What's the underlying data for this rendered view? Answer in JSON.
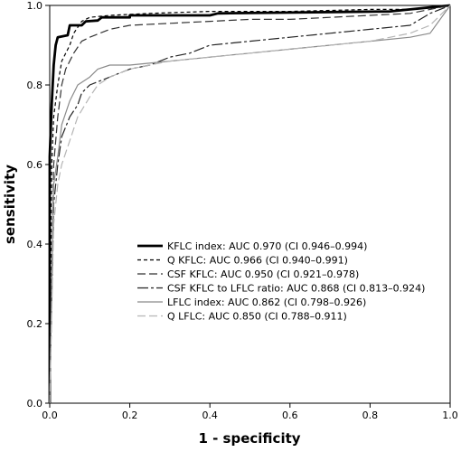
{
  "chart_data": {
    "type": "line",
    "title": "",
    "xlabel": "1 - specificity",
    "ylabel": "sensitivity",
    "xlim": [
      0,
      1
    ],
    "ylim": [
      0,
      1
    ],
    "x_ticks": [
      "0.0",
      "0.2",
      "0.4",
      "0.6",
      "0.8",
      "1.0"
    ],
    "y_ticks": [
      "0.0",
      "0.2",
      "0.4",
      "0.6",
      "0.8",
      "1.0"
    ],
    "grid": false,
    "legend_position": "center-right",
    "series": [
      {
        "name": "KFLC index: AUC 0.970 (CI 0.946–0.994)",
        "color": "#000000",
        "dash": "solid",
        "weight": "thick",
        "points": [
          [
            0,
            0
          ],
          [
            0,
            0.62
          ],
          [
            0.005,
            0.75
          ],
          [
            0.01,
            0.85
          ],
          [
            0.015,
            0.9
          ],
          [
            0.02,
            0.92
          ],
          [
            0.045,
            0.925
          ],
          [
            0.05,
            0.95
          ],
          [
            0.08,
            0.95
          ],
          [
            0.09,
            0.96
          ],
          [
            0.12,
            0.962
          ],
          [
            0.13,
            0.97
          ],
          [
            0.2,
            0.97
          ],
          [
            0.2,
            0.975
          ],
          [
            0.4,
            0.975
          ],
          [
            0.42,
            0.98
          ],
          [
            0.85,
            0.985
          ],
          [
            0.9,
            0.99
          ],
          [
            0.95,
            0.995
          ],
          [
            1,
            1
          ]
        ]
      },
      {
        "name": "Q KFLC: AUC 0.966 (CI 0.940–0.991)",
        "color": "#000000",
        "dash": "short",
        "weight": "normal",
        "points": [
          [
            0,
            0
          ],
          [
            0.005,
            0.6
          ],
          [
            0.01,
            0.72
          ],
          [
            0.02,
            0.8
          ],
          [
            0.03,
            0.86
          ],
          [
            0.05,
            0.9
          ],
          [
            0.06,
            0.93
          ],
          [
            0.08,
            0.96
          ],
          [
            0.1,
            0.97
          ],
          [
            0.15,
            0.975
          ],
          [
            0.25,
            0.98
          ],
          [
            0.4,
            0.985
          ],
          [
            0.6,
            0.985
          ],
          [
            0.8,
            0.99
          ],
          [
            0.9,
            0.99
          ],
          [
            0.95,
            0.995
          ],
          [
            1,
            1
          ]
        ]
      },
      {
        "name": "CSF KFLC: AUC 0.950 (CI 0.921–0.978)",
        "color": "#333333",
        "dash": "long",
        "weight": "normal",
        "points": [
          [
            0,
            0
          ],
          [
            0.01,
            0.6
          ],
          [
            0.02,
            0.72
          ],
          [
            0.03,
            0.8
          ],
          [
            0.04,
            0.84
          ],
          [
            0.06,
            0.88
          ],
          [
            0.08,
            0.91
          ],
          [
            0.1,
            0.92
          ],
          [
            0.15,
            0.94
          ],
          [
            0.2,
            0.95
          ],
          [
            0.3,
            0.955
          ],
          [
            0.4,
            0.96
          ],
          [
            0.5,
            0.965
          ],
          [
            0.6,
            0.965
          ],
          [
            0.7,
            0.97
          ],
          [
            0.8,
            0.975
          ],
          [
            0.9,
            0.98
          ],
          [
            1,
            1
          ]
        ]
      },
      {
        "name": "CSF KFLC to LFLC ratio: AUC 0.868 (CI 0.813–0.924)",
        "color": "#222222",
        "dash": "longshort",
        "weight": "normal",
        "points": [
          [
            0,
            0
          ],
          [
            0.01,
            0.5
          ],
          [
            0.02,
            0.6
          ],
          [
            0.03,
            0.67
          ],
          [
            0.05,
            0.72
          ],
          [
            0.07,
            0.75
          ],
          [
            0.08,
            0.78
          ],
          [
            0.1,
            0.8
          ],
          [
            0.15,
            0.82
          ],
          [
            0.2,
            0.84
          ],
          [
            0.25,
            0.85
          ],
          [
            0.3,
            0.87
          ],
          [
            0.35,
            0.88
          ],
          [
            0.4,
            0.9
          ],
          [
            0.5,
            0.91
          ],
          [
            0.6,
            0.92
          ],
          [
            0.7,
            0.93
          ],
          [
            0.8,
            0.94
          ],
          [
            0.9,
            0.95
          ],
          [
            0.95,
            0.98
          ],
          [
            1,
            1
          ]
        ]
      },
      {
        "name": "LFLC index: AUC 0.862 (CI 0.798–0.926)",
        "color": "#8a8a8a",
        "dash": "solid",
        "weight": "normal",
        "points": [
          [
            0,
            0
          ],
          [
            0.01,
            0.55
          ],
          [
            0.02,
            0.62
          ],
          [
            0.03,
            0.7
          ],
          [
            0.05,
            0.76
          ],
          [
            0.07,
            0.8
          ],
          [
            0.1,
            0.82
          ],
          [
            0.12,
            0.84
          ],
          [
            0.15,
            0.85
          ],
          [
            0.2,
            0.85
          ],
          [
            0.3,
            0.86
          ],
          [
            0.4,
            0.87
          ],
          [
            0.5,
            0.88
          ],
          [
            0.6,
            0.89
          ],
          [
            0.7,
            0.9
          ],
          [
            0.8,
            0.91
          ],
          [
            0.9,
            0.92
          ],
          [
            0.95,
            0.93
          ],
          [
            1,
            1
          ]
        ]
      },
      {
        "name": "Q LFLC: AUC 0.850 (CI 0.788–0.911)",
        "color": "#b5b5b5",
        "dash": "long",
        "weight": "normal",
        "points": [
          [
            0,
            0
          ],
          [
            0.01,
            0.45
          ],
          [
            0.02,
            0.55
          ],
          [
            0.03,
            0.6
          ],
          [
            0.05,
            0.66
          ],
          [
            0.07,
            0.72
          ],
          [
            0.1,
            0.77
          ],
          [
            0.12,
            0.8
          ],
          [
            0.15,
            0.82
          ],
          [
            0.2,
            0.84
          ],
          [
            0.3,
            0.86
          ],
          [
            0.4,
            0.87
          ],
          [
            0.5,
            0.88
          ],
          [
            0.6,
            0.89
          ],
          [
            0.7,
            0.9
          ],
          [
            0.8,
            0.91
          ],
          [
            0.9,
            0.93
          ],
          [
            0.95,
            0.95
          ],
          [
            1,
            1
          ]
        ]
      }
    ]
  }
}
